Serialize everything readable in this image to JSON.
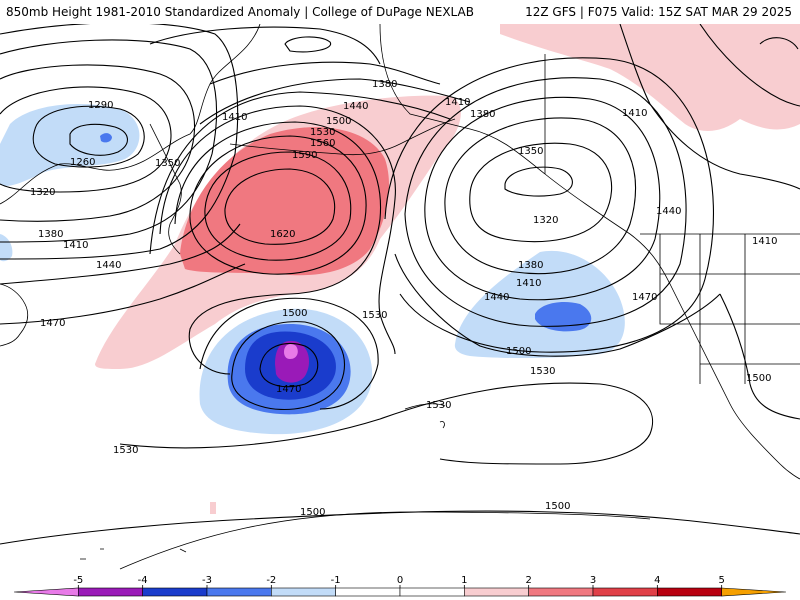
{
  "header": {
    "title_left": "850mb Height 1981-2010 Standardized Anomaly | College of DuPage NEXLAB",
    "title_right": "12Z GFS | F075 Valid: 15Z SAT MAR 29 2025"
  },
  "contour_labels": [
    {
      "id": "c1290",
      "text": "1290"
    },
    {
      "id": "c1260",
      "text": "1260"
    },
    {
      "id": "c1320w",
      "text": "1320"
    },
    {
      "id": "c1350w",
      "text": "1350"
    },
    {
      "id": "c1380w",
      "text": "1380"
    },
    {
      "id": "c1410w",
      "text": "1410"
    },
    {
      "id": "c1440w",
      "text": "1440"
    },
    {
      "id": "c1470w",
      "text": "1470"
    },
    {
      "id": "c1380n",
      "text": "1380"
    },
    {
      "id": "c1410n",
      "text": "1410"
    },
    {
      "id": "c1440n",
      "text": "1440"
    },
    {
      "id": "c1500n",
      "text": "1500"
    },
    {
      "id": "c1530n",
      "text": "1530"
    },
    {
      "id": "c1560n",
      "text": "1560"
    },
    {
      "id": "c1590n",
      "text": "1590"
    },
    {
      "id": "c1620",
      "text": "1620"
    },
    {
      "id": "c1410ne",
      "text": "1410"
    },
    {
      "id": "c1380e",
      "text": "1380"
    },
    {
      "id": "c1410far",
      "text": "1410"
    },
    {
      "id": "c1350e",
      "text": "1350"
    },
    {
      "id": "c1320e",
      "text": "1320"
    },
    {
      "id": "c1440coast",
      "text": "1440"
    },
    {
      "id": "c1410us",
      "text": "1410"
    },
    {
      "id": "c1380e2",
      "text": "1380"
    },
    {
      "id": "c1410e2",
      "text": "1410"
    },
    {
      "id": "c1440e2",
      "text": "1440"
    },
    {
      "id": "c1470us",
      "text": "1470"
    },
    {
      "id": "c1500e",
      "text": "1500"
    },
    {
      "id": "c1500us",
      "text": "1500"
    },
    {
      "id": "c1530mid",
      "text": "1530"
    },
    {
      "id": "c1500low",
      "text": "1500"
    },
    {
      "id": "c1470low",
      "text": "1470"
    },
    {
      "id": "c1530c",
      "text": "1530"
    },
    {
      "id": "c1530s",
      "text": "1530"
    },
    {
      "id": "c1530sw",
      "text": "1530"
    },
    {
      "id": "c1500s1",
      "text": "1500"
    },
    {
      "id": "c1500s2",
      "text": "1500"
    }
  ],
  "colorbar": {
    "ticks": [
      "-5",
      "-4",
      "-3",
      "-2",
      "-1",
      "0",
      "1",
      "2",
      "3",
      "4",
      "5"
    ],
    "colors": {
      "neg5": "#e87ae8",
      "neg4": "#9a1ab8",
      "neg3": "#1a3ccc",
      "neg2": "#4a78ee",
      "neg1": "#c2dcf8",
      "zero": "#ffffff",
      "pos1": "#f8cdd0",
      "pos2": "#f07880",
      "pos3": "#e04048",
      "pos4": "#b80010",
      "pos5": "#f5a000"
    }
  }
}
